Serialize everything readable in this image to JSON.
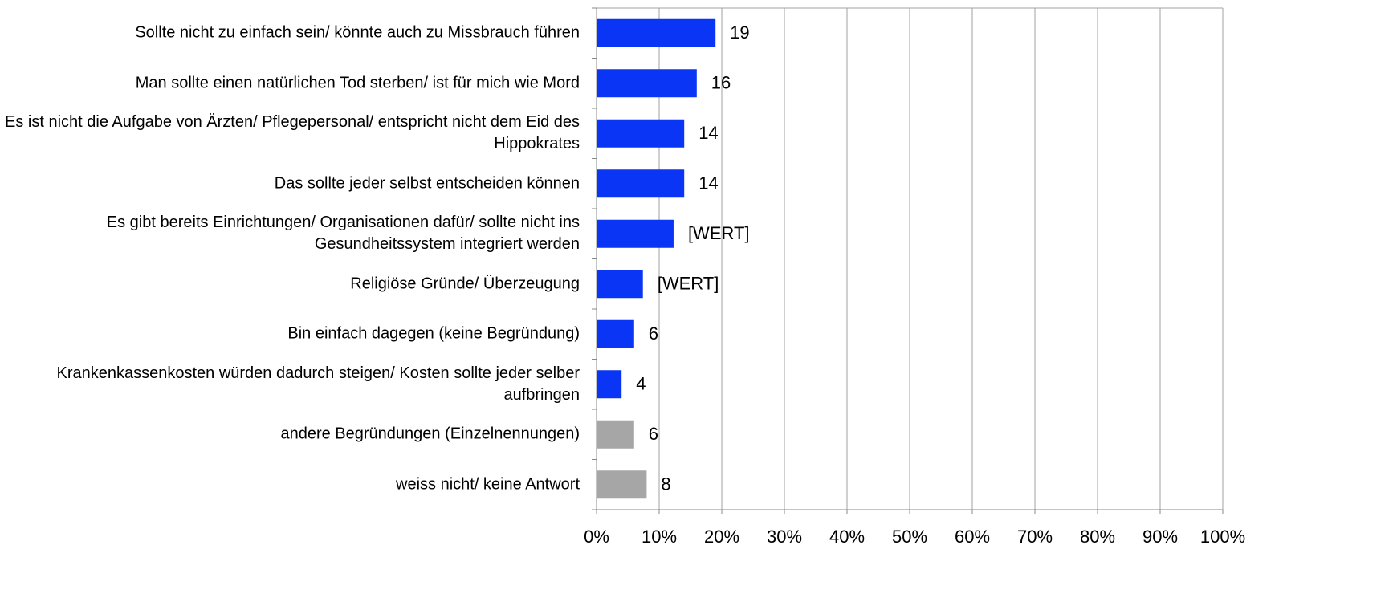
{
  "chart_data": {
    "type": "bar",
    "orientation": "horizontal",
    "categories": [
      "Sollte nicht zu einfach sein/ könnte auch zu Missbrauch führen",
      "Man sollte einen natürlichen Tod sterben/ ist für mich wie Mord",
      "Es ist nicht die Aufgabe von Ärzten/ Pflegepersonal/ entspricht nicht dem Eid des Hippokrates",
      "Das sollte jeder selbst entscheiden können",
      "Es gibt bereits Einrichtungen/ Organisationen dafür/ sollte nicht ins Gesundheitssystem integriert werden",
      "Religiöse Gründe/ Überzeugung",
      "Bin einfach dagegen (keine Begründung)",
      "Krankenkassenkosten würden dadurch steigen/ Kosten sollte jeder selber aufbringen",
      "andere Begründungen (Einzelnennungen)",
      "weiss nicht/ keine Antwort"
    ],
    "values": [
      19,
      16,
      14,
      14,
      12.3,
      7.4,
      6,
      4,
      6,
      8
    ],
    "value_labels": [
      "19",
      "16",
      "14",
      "14",
      "[WERT]",
      "[WERT]",
      "6",
      "4",
      "6",
      "8"
    ],
    "colors": [
      "#0a35f5",
      "#0a35f5",
      "#0a35f5",
      "#0a35f5",
      "#0a35f5",
      "#0a35f5",
      "#0a35f5",
      "#0a35f5",
      "#a6a6a6",
      "#a6a6a6"
    ],
    "xlim": [
      0,
      100
    ],
    "xticks": [
      {
        "value": 0,
        "label": "0%"
      },
      {
        "value": 10,
        "label": "10%"
      },
      {
        "value": 20,
        "label": "20%"
      },
      {
        "value": 30,
        "label": "30%"
      },
      {
        "value": 40,
        "label": "40%"
      },
      {
        "value": 50,
        "label": "50%"
      },
      {
        "value": 60,
        "label": "60%"
      },
      {
        "value": 70,
        "label": "70%"
      },
      {
        "value": 80,
        "label": "80%"
      },
      {
        "value": 90,
        "label": "90%"
      },
      {
        "value": 100,
        "label": "100%"
      }
    ],
    "grid": true
  }
}
